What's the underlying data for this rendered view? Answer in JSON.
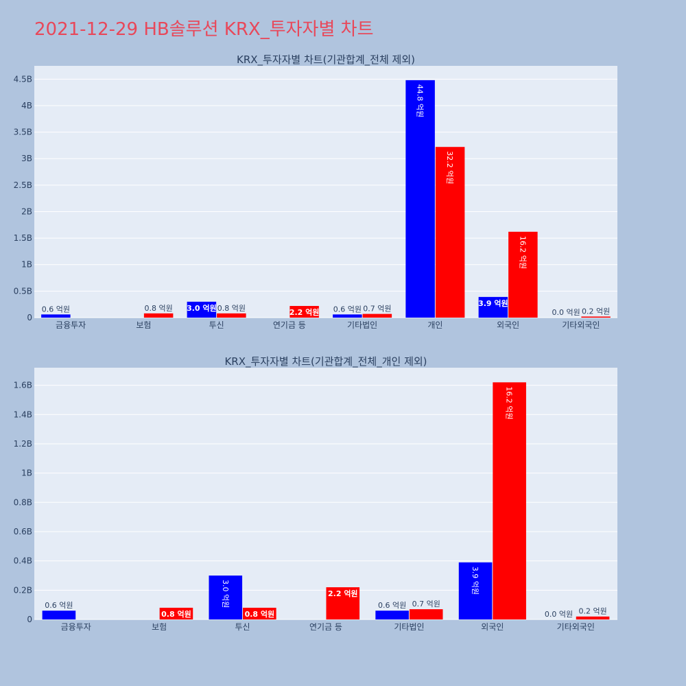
{
  "page": {
    "title": "2021-12-29 HB솔루션 KRX_투자자별 차트"
  },
  "colors": {
    "buy": "#0000ff",
    "sell": "#ff0000",
    "plot_bg": "#e5ecf6",
    "page_bg": "#b0c4de",
    "grid": "#ffffff",
    "text": "#2a3f5f"
  },
  "chart_data": [
    {
      "type": "bar",
      "title": "KRX_투자자별 차트(기관합계_전체 제외)",
      "categories": [
        "금융투자",
        "보험",
        "투신",
        "연기금 등",
        "기타법인",
        "개인",
        "외국인",
        "기타외국인"
      ],
      "series": [
        {
          "color": "#0000ff",
          "values": [
            0.06,
            0.0,
            0.3,
            0.0,
            0.06,
            4.48,
            0.39,
            0.0
          ],
          "labels": [
            "0.6 억원",
            "",
            "3.0 억원",
            "",
            "0.6 억원",
            "44.8 억원",
            "3.9 억원",
            "0.0 억원"
          ]
        },
        {
          "color": "#ff0000",
          "values": [
            0.0,
            0.08,
            0.08,
            0.22,
            0.07,
            3.22,
            1.62,
            0.02
          ],
          "labels": [
            "",
            "0.8 억원",
            "0.8 억원",
            "2.2 억원",
            "0.7 억원",
            "32.2 억원",
            "16.2 억원",
            "0.2 억원"
          ]
        }
      ],
      "ylim": [
        0,
        4.75
      ],
      "yticks": [
        0,
        0.5,
        1,
        1.5,
        2,
        2.5,
        3,
        3.5,
        4,
        4.5
      ],
      "ytick_labels": [
        "0",
        "0.5B",
        "1B",
        "1.5B",
        "2B",
        "2.5B",
        "3B",
        "3.5B",
        "4B",
        "4.5B"
      ],
      "grid": true
    },
    {
      "type": "bar",
      "title": "KRX_투자자별 차트(기관합계_전체_개인 제외)",
      "categories": [
        "금융투자",
        "보험",
        "투신",
        "연기금 등",
        "기타법인",
        "외국인",
        "기타외국인"
      ],
      "series": [
        {
          "color": "#0000ff",
          "values": [
            0.06,
            0.0,
            0.3,
            0.0,
            0.06,
            0.39,
            0.0
          ],
          "labels": [
            "0.6 억원",
            "",
            "3.0 억원",
            "",
            "0.6 억원",
            "3.9 억원",
            "0.0 억원"
          ]
        },
        {
          "color": "#ff0000",
          "values": [
            0.0,
            0.08,
            0.08,
            0.22,
            0.07,
            1.62,
            0.02
          ],
          "labels": [
            "",
            "0.8 억원",
            "0.8 억원",
            "2.2 억원",
            "0.7 억원",
            "16.2 억원",
            "0.2 억원"
          ]
        }
      ],
      "ylim": [
        0,
        1.72
      ],
      "yticks": [
        0,
        0.2,
        0.4,
        0.6,
        0.8,
        1,
        1.2,
        1.4,
        1.6
      ],
      "ytick_labels": [
        "0",
        "0.2B",
        "0.4B",
        "0.6B",
        "0.8B",
        "1B",
        "1.2B",
        "1.4B",
        "1.6B"
      ],
      "grid": true
    }
  ]
}
